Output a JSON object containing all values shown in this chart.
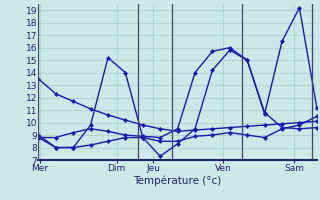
{
  "xlabel": "Température (°c)",
  "background_color": "#cce8e8",
  "grid_color": "#aacccc",
  "line_color": "#1a1aaa",
  "ylim": [
    7,
    19.5
  ],
  "yticks": [
    7,
    8,
    9,
    10,
    11,
    12,
    13,
    14,
    15,
    16,
    17,
    18,
    19
  ],
  "xlim": [
    0,
    8.0
  ],
  "day_labels": [
    "Mer",
    "Dim",
    "Jeu",
    "Ven",
    "Sam"
  ],
  "day_positions": [
    0.05,
    2.25,
    3.3,
    5.3,
    7.35
  ],
  "vline_positions": [
    0.0,
    2.85,
    3.85,
    5.85,
    7.85
  ],
  "lines": [
    {
      "x": [
        0.0,
        0.5,
        1.0,
        1.5,
        2.0,
        2.5,
        3.0,
        3.5,
        4.0,
        4.5,
        5.0,
        5.5,
        6.0,
        6.5,
        7.0,
        7.5,
        8.0
      ],
      "y": [
        13.5,
        12.3,
        11.7,
        11.1,
        10.6,
        10.2,
        9.8,
        9.5,
        9.3,
        9.4,
        9.5,
        9.6,
        9.7,
        9.8,
        9.9,
        10.0,
        10.1
      ],
      "lw": 1.0
    },
    {
      "x": [
        0.0,
        0.5,
        1.0,
        1.5,
        2.0,
        2.5,
        3.0,
        3.5,
        4.0,
        4.5,
        5.0,
        5.5,
        6.0,
        6.5,
        7.0,
        7.5,
        8.0
      ],
      "y": [
        8.8,
        8.8,
        9.2,
        9.5,
        9.3,
        9.0,
        8.9,
        8.8,
        9.5,
        14.0,
        15.7,
        16.0,
        15.0,
        10.8,
        9.6,
        9.5,
        9.6
      ],
      "lw": 1.0
    },
    {
      "x": [
        0.0,
        0.5,
        1.0,
        1.5,
        2.0,
        2.5,
        3.0,
        3.5,
        4.0,
        4.5,
        5.0,
        5.5,
        6.0,
        6.5,
        7.0,
        7.5,
        8.0
      ],
      "y": [
        9.0,
        8.0,
        8.0,
        9.8,
        15.2,
        14.0,
        8.8,
        7.3,
        8.3,
        9.5,
        14.2,
        15.8,
        15.0,
        10.7,
        16.5,
        19.2,
        11.2
      ],
      "lw": 1.0
    },
    {
      "x": [
        0.0,
        0.5,
        1.0,
        1.5,
        2.0,
        2.5,
        3.0,
        3.5,
        4.0,
        4.5,
        5.0,
        5.5,
        6.0,
        6.5,
        7.0,
        7.5,
        8.0
      ],
      "y": [
        8.8,
        8.0,
        8.0,
        8.2,
        8.5,
        8.8,
        8.8,
        8.5,
        8.5,
        8.9,
        9.0,
        9.2,
        9.0,
        8.8,
        9.5,
        9.8,
        10.5
      ],
      "lw": 1.0
    }
  ]
}
